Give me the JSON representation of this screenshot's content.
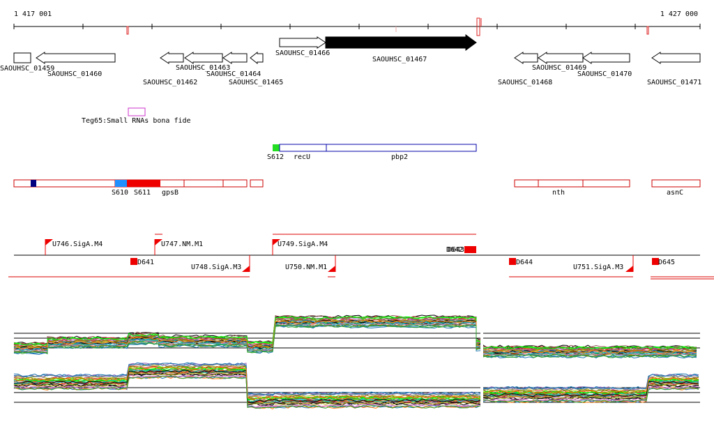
{
  "ruler": {
    "start_label": "1 417 001",
    "end_label": "1 427 000"
  },
  "genes_forward": [
    {
      "label": "SAOUHSC_01466",
      "filled": false
    },
    {
      "label": "SAOUHSC_01467",
      "filled": true
    }
  ],
  "genes_reverse": [
    {
      "label": "SAOUHSC_01459"
    },
    {
      "label": "SAOUHSC_01460"
    },
    {
      "label": "SAOUHSC_01462"
    },
    {
      "label": "SAOUHSC_01463"
    },
    {
      "label": "SAOUHSC_01464"
    },
    {
      "label": "SAOUHSC_01465"
    },
    {
      "label": "SAOUHSC_01468"
    },
    {
      "label": "SAOUHSC_01469"
    },
    {
      "label": "SAOUHSC_01470"
    },
    {
      "label": "SAOUHSC_01471"
    }
  ],
  "small_rna": {
    "label": "Teg65:Small RNAs bona fide",
    "color": "#cc33cc"
  },
  "blue_track": {
    "color": "#0000aa",
    "segments": [
      {
        "label": "S612"
      },
      {
        "label": "recU"
      },
      {
        "label": "pbp2"
      }
    ],
    "marker_color": "#22dd22"
  },
  "red_track": {
    "color": "#cc0000",
    "labels": [
      {
        "label": "S610"
      },
      {
        "label": "S611"
      },
      {
        "label": "gpsB"
      },
      {
        "label": "nth"
      },
      {
        "label": "asnC"
      }
    ],
    "marker_colors": {
      "dark": "#000080",
      "cyan": "#1e90ff",
      "red": "#ee0000"
    }
  },
  "promoters": [
    {
      "label": "U746.SigA.M4"
    },
    {
      "label": "U747.NM.M1"
    },
    {
      "label": "U749.SigA.M4"
    },
    {
      "label": "U748.SigA.M3"
    },
    {
      "label": "U750.NM.M1"
    },
    {
      "label": "U751.SigA.M3"
    }
  ],
  "terminators": [
    {
      "label": "D641"
    },
    {
      "label": "D642"
    },
    {
      "label": "D643"
    },
    {
      "label": "D644"
    },
    {
      "label": "D645"
    }
  ],
  "expression": {
    "panels": 2,
    "colors": [
      "#000000",
      "#1f77b4",
      "#ff7f0e",
      "#2ca02c",
      "#d62728",
      "#9467bd",
      "#8c564b",
      "#e377c2",
      "#7f7f7f",
      "#bcbd22",
      "#17becf",
      "#808000",
      "#00ff00"
    ]
  }
}
